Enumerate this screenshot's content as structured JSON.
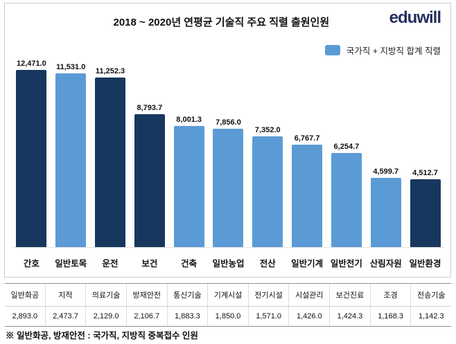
{
  "brand": {
    "logo_text": "eduwill"
  },
  "footnote": "※ 일반화공, 방재안전 : 국가직, 지방직 중복접수 인원",
  "chart_data": [
    {
      "type": "bar",
      "title": "2018 ~ 2020년 연평균 기술직 주요 직렬 출원인원",
      "legend": [
        "국가직 + 지방직 합계 직렬"
      ],
      "legend_position": "top-right",
      "legend_swatch_color": "#5b9bd5",
      "categories": [
        "간호",
        "일반토목",
        "운전",
        "보건",
        "건축",
        "일반농업",
        "전산",
        "일반기계",
        "일반전기",
        "산림자원",
        "일반환경"
      ],
      "values": [
        12471.0,
        11531.0,
        11252.3,
        8793.7,
        8001.3,
        7856.0,
        7352.0,
        6767.7,
        6254.7,
        4599.7,
        4512.7
      ],
      "value_labels": [
        "12,471.0",
        "11,531.0",
        "11,252.3",
        "8,793.7",
        "8,001.3",
        "7,856.0",
        "7,352.0",
        "6,767.7",
        "6,254.7",
        "4,599.7",
        "4,512.7"
      ],
      "bar_colors": [
        "#17375e",
        "#5b9bd5",
        "#17375e",
        "#17375e",
        "#5b9bd5",
        "#5b9bd5",
        "#5b9bd5",
        "#5b9bd5",
        "#5b9bd5",
        "#5b9bd5",
        "#17375e"
      ],
      "ylim": [
        0,
        12471
      ],
      "grid": false,
      "xlabel": "",
      "ylabel": ""
    },
    {
      "type": "table",
      "headers": [
        "일반화공",
        "지적",
        "의료기술",
        "방재안전",
        "통신기술",
        "기계시설",
        "전기시설",
        "시설관리",
        "보건진료",
        "조경",
        "전송기술"
      ],
      "values": [
        "2,893.0",
        "2,473.7",
        "2,129.0",
        "2,106.7",
        "1,883.3",
        "1,850.0",
        "1,571.0",
        "1,426.0",
        "1,424.3",
        "1,168.3",
        "1,142.3"
      ]
    }
  ]
}
